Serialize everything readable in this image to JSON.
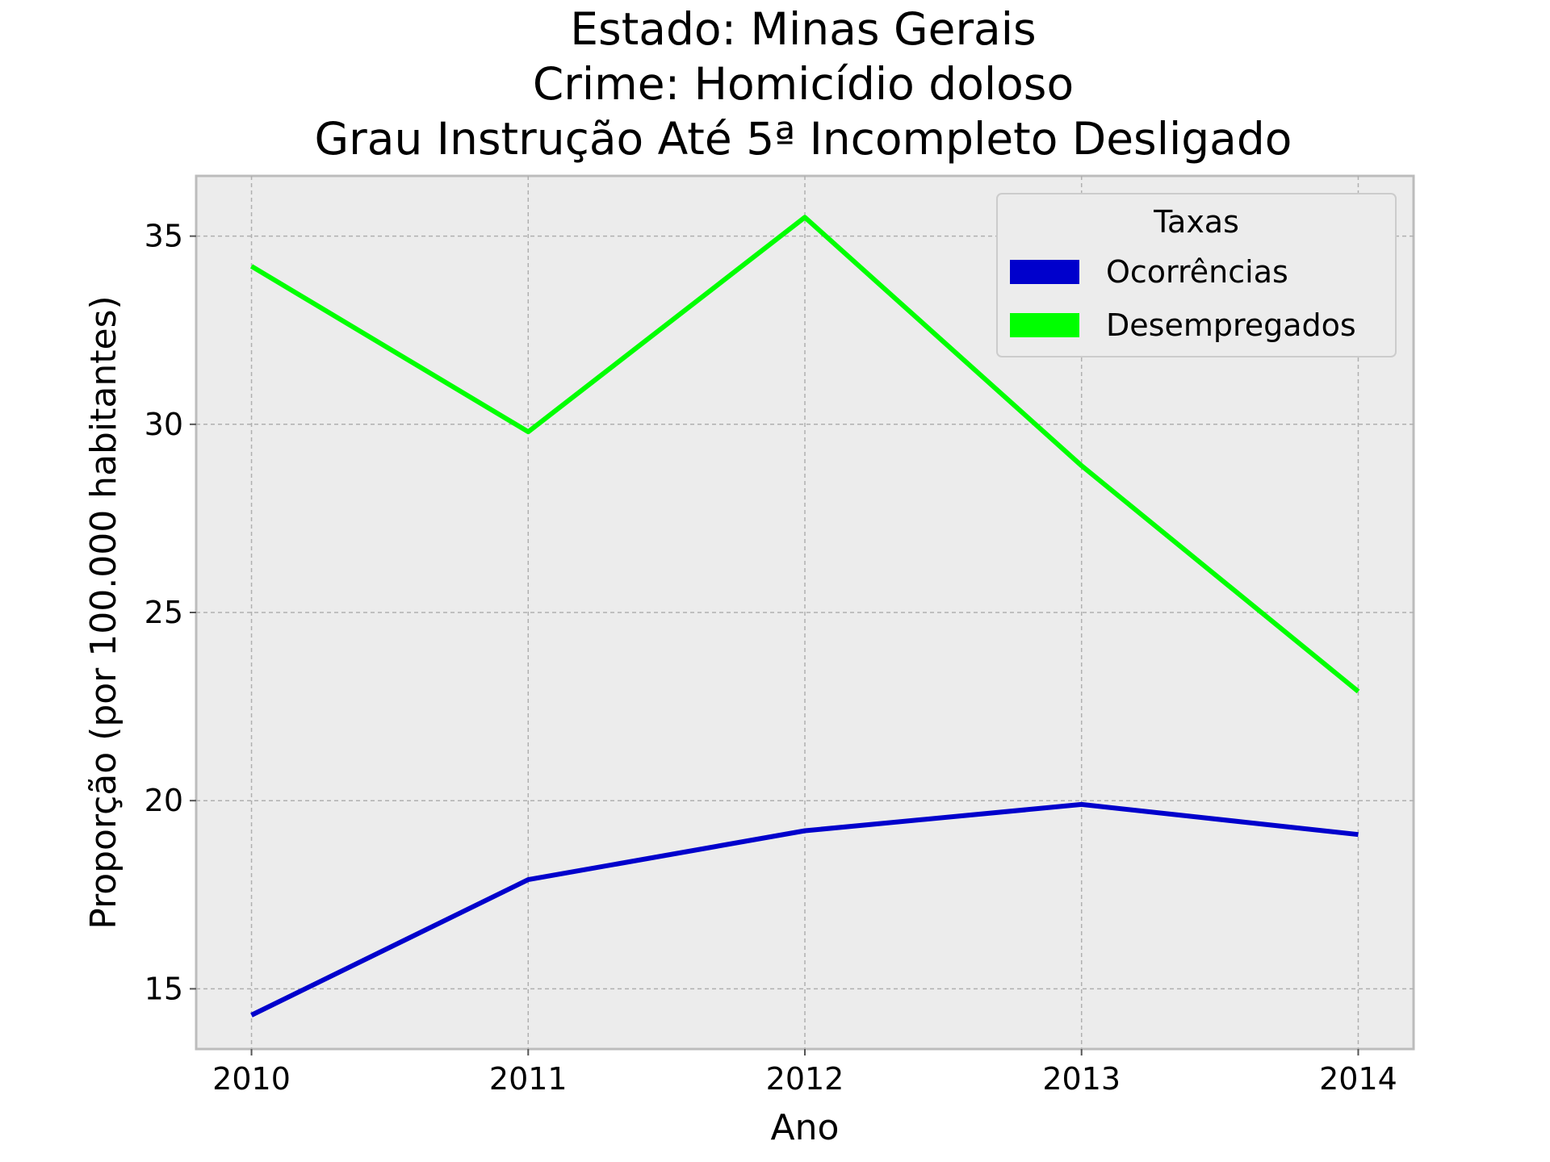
{
  "chart_data": {
    "type": "line",
    "title_lines": [
      "Estado: Minas Gerais",
      "Crime: Homicídio doloso",
      "Grau Instrução  Até 5ª Incompleto   Desligado"
    ],
    "xlabel": "Ano",
    "ylabel": "Proporção (por 100.000 habitantes)",
    "x": [
      2010,
      2011,
      2012,
      2013,
      2014
    ],
    "xlim": [
      2009.8,
      2014.2
    ],
    "ylim": [
      13.4,
      36.6
    ],
    "yticks": [
      15,
      20,
      25,
      30,
      35
    ],
    "grid": true,
    "legend": {
      "title": "Taxas",
      "position": "top-right"
    },
    "series": [
      {
        "name": "Ocorrências",
        "color": "#0000cc",
        "values": [
          14.3,
          17.9,
          19.2,
          19.9,
          19.1
        ]
      },
      {
        "name": "Desempregados",
        "color": "#00ff00",
        "values": [
          34.2,
          29.8,
          35.5,
          28.9,
          22.9
        ]
      }
    ]
  }
}
